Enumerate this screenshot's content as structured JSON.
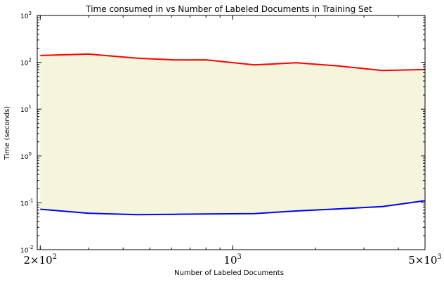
{
  "chart_data": {
    "type": "area",
    "title": "Time consumed in  vs Number of Labeled Documents in Training Set",
    "xlabel": "Number of Labeled Documents",
    "ylabel": "Time (seconds)",
    "xscale": "log",
    "yscale": "log",
    "xlim": [
      195,
      5000
    ],
    "ylim": [
      0.01,
      1000
    ],
    "grid": false,
    "legend": "none",
    "x_ticks": [
      {
        "value": 200,
        "mantissa": "2",
        "exponent": "2"
      },
      {
        "value": 1000,
        "mantissa": "",
        "exponent": "3"
      },
      {
        "value": 5000,
        "mantissa": "5",
        "exponent": "3"
      }
    ],
    "y_ticks": [
      {
        "value": 0.01,
        "exponent": "-2"
      },
      {
        "value": 0.1,
        "exponent": "-1"
      },
      {
        "value": 1,
        "exponent": "0"
      },
      {
        "value": 10,
        "exponent": "1"
      },
      {
        "value": 100,
        "exponent": "2"
      },
      {
        "value": 1000,
        "exponent": "3"
      }
    ],
    "x": [
      200,
      300,
      450,
      620,
      800,
      1200,
      1700,
      2400,
      3500,
      5000
    ],
    "series": [
      {
        "color": "#ff0000",
        "values": [
          140,
          150,
          122,
          112,
          113,
          88,
          98,
          84,
          67,
          70
        ]
      },
      {
        "color": "#0000ff",
        "values": [
          0.073,
          0.06,
          0.056,
          0.057,
          0.058,
          0.059,
          0.067,
          0.074,
          0.083,
          0.111
        ]
      }
    ],
    "fill_color": "#f5f5dc"
  }
}
